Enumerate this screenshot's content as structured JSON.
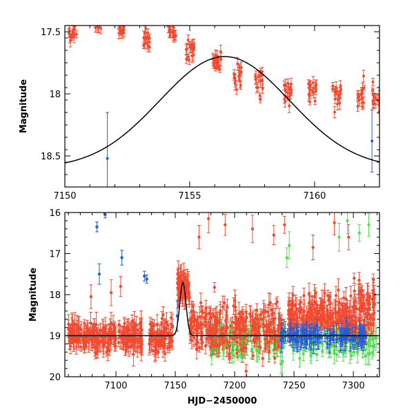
{
  "colors": {
    "red": "#f24a30",
    "blue": "#1f5fdc",
    "green": "#4fe04f",
    "curve": "#000000"
  },
  "chart_data": [
    {
      "type": "scatter",
      "title": "",
      "xlabel": "",
      "ylabel": "Magnitude",
      "xlim": [
        7150,
        7162.6
      ],
      "ylim": [
        18.75,
        17.45
      ],
      "y_inverted": true,
      "xticks": [
        7150,
        7155,
        7160
      ],
      "xtick_labels": [
        "7150",
        "7155",
        "7160"
      ],
      "yticks": [
        17.5,
        18,
        18.5
      ],
      "ytick_labels": [
        "17.5",
        "18",
        "18.5"
      ],
      "model_curve": {
        "type": "line",
        "description": "Gaussian-shaped brightening",
        "peak_x": 7156.4,
        "peak_mag": 17.7,
        "base_mag": 18.6,
        "width": 2.6
      },
      "series": [
        {
          "name": "red",
          "color_key": "red",
          "nightly_clusters": [
            {
              "x": 7150.3,
              "mag": 17.52,
              "spread": 0.07,
              "n": 14
            },
            {
              "x": 7151.3,
              "mag": 17.45,
              "spread": 0.04,
              "n": 10
            },
            {
              "x": 7152.3,
              "mag": 17.48,
              "spread": 0.05,
              "n": 14
            },
            {
              "x": 7153.3,
              "mag": 17.56,
              "spread": 0.06,
              "n": 14
            },
            {
              "x": 7154.3,
              "mag": 17.5,
              "spread": 0.07,
              "n": 16
            },
            {
              "x": 7155.0,
              "mag": 17.64,
              "spread": 0.07,
              "n": 18
            },
            {
              "x": 7156.1,
              "mag": 17.74,
              "spread": 0.06,
              "n": 18
            },
            {
              "x": 7156.9,
              "mag": 17.86,
              "spread": 0.07,
              "n": 16
            },
            {
              "x": 7157.8,
              "mag": 17.92,
              "spread": 0.09,
              "n": 16
            },
            {
              "x": 7158.9,
              "mag": 17.98,
              "spread": 0.09,
              "n": 16
            },
            {
              "x": 7159.9,
              "mag": 17.97,
              "spread": 0.08,
              "n": 16
            },
            {
              "x": 7160.9,
              "mag": 18.02,
              "spread": 0.08,
              "n": 16
            },
            {
              "x": 7161.9,
              "mag": 17.98,
              "spread": 0.1,
              "n": 16
            },
            {
              "x": 7162.45,
              "mag": 18.05,
              "spread": 0.1,
              "n": 14
            }
          ]
        },
        {
          "name": "blue",
          "color_key": "blue",
          "points": [
            {
              "x": 7151.7,
              "mag": 18.52,
              "err": 0.37
            },
            {
              "x": 7162.3,
              "mag": 18.38,
              "err": 0.25
            }
          ]
        }
      ]
    },
    {
      "type": "scatter",
      "title": "",
      "xlabel": "HJD−2450000",
      "ylabel": "Magnitude",
      "xlim": [
        7057,
        7322
      ],
      "ylim": [
        20,
        16
      ],
      "y_inverted": true,
      "xticks": [
        7100,
        7150,
        7200,
        7250,
        7300
      ],
      "xtick_labels": [
        "7100",
        "7150",
        "7200",
        "7250",
        "7300"
      ],
      "yticks": [
        16,
        17,
        18,
        19,
        20
      ],
      "ytick_labels": [
        "16",
        "17",
        "18",
        "19",
        "20"
      ],
      "model_curve": {
        "type": "line",
        "description": "baseline with brief peak",
        "baseline_mag": 19.0,
        "peak_x": 7156.4,
        "peak_mag": 17.7,
        "width": 2.6
      },
      "series": [
        {
          "name": "red",
          "color_key": "red",
          "segments": [
            {
              "x0": 7060,
              "x1": 7100,
              "mean": 19.0,
              "spread": 0.28,
              "n": 150
            },
            {
              "x0": 7102,
              "x1": 7122,
              "mean": 19.0,
              "spread": 0.3,
              "n": 80
            },
            {
              "x0": 7128,
              "x1": 7148,
              "mean": 19.05,
              "spread": 0.3,
              "n": 80
            },
            {
              "x0": 7151,
              "x1": 7162,
              "mean": 17.8,
              "spread": 0.3,
              "n": 70
            },
            {
              "x0": 7162,
              "x1": 7240,
              "mean": 18.8,
              "spread": 0.55,
              "n": 260
            },
            {
              "x0": 7245,
              "x1": 7300,
              "mean": 18.55,
              "spread": 0.45,
              "n": 220
            },
            {
              "x0": 7300,
              "x1": 7318,
              "mean": 18.4,
              "spread": 0.6,
              "n": 80
            }
          ],
          "outliers": [
            {
              "x": 7079,
              "mag": 18.05
            },
            {
              "x": 7096,
              "mag": 17.95
            },
            {
              "x": 7104,
              "mag": 17.8
            },
            {
              "x": 7170,
              "mag": 16.6
            },
            {
              "x": 7178,
              "mag": 16.15
            },
            {
              "x": 7192,
              "mag": 16.3
            },
            {
              "x": 7215,
              "mag": 16.4
            },
            {
              "x": 7233,
              "mag": 16.55
            },
            {
              "x": 7242,
              "mag": 16.3
            },
            {
              "x": 7266,
              "mag": 16.85
            },
            {
              "x": 7284,
              "mag": 16.25
            },
            {
              "x": 7296,
              "mag": 16.6
            }
          ]
        },
        {
          "name": "blue",
          "color_key": "blue",
          "points": [
            {
              "x": 7084,
              "mag": 16.35,
              "err": 0.12
            },
            {
              "x": 7086,
              "mag": 17.5,
              "err": 0.25
            },
            {
              "x": 7091,
              "mag": 16.05,
              "err": 0.08
            },
            {
              "x": 7105,
              "mag": 17.1,
              "err": 0.18
            },
            {
              "x": 7124,
              "mag": 17.55,
              "err": 0.12
            },
            {
              "x": 7126,
              "mag": 17.62,
              "err": 0.1
            },
            {
              "x": 7151.7,
              "mag": 18.52,
              "err": 0.37
            }
          ],
          "segments": [
            {
              "x0": 7238,
              "x1": 7312,
              "mean": 19.0,
              "spread": 0.15,
              "n": 120
            }
          ]
        },
        {
          "name": "green",
          "color_key": "green",
          "segments": [
            {
              "x0": 7180,
              "x1": 7222,
              "mean": 19.1,
              "spread": 0.35,
              "n": 90
            },
            {
              "x0": 7222,
              "x1": 7320,
              "mean": 19.1,
              "spread": 0.4,
              "n": 160
            }
          ],
          "outliers": [
            {
              "x": 7244,
              "mag": 17.1
            },
            {
              "x": 7246,
              "mag": 16.8
            },
            {
              "x": 7288,
              "mag": 16.6
            },
            {
              "x": 7295,
              "mag": 16.2
            },
            {
              "x": 7305,
              "mag": 16.5
            },
            {
              "x": 7313,
              "mag": 16.3
            }
          ]
        }
      ]
    }
  ]
}
